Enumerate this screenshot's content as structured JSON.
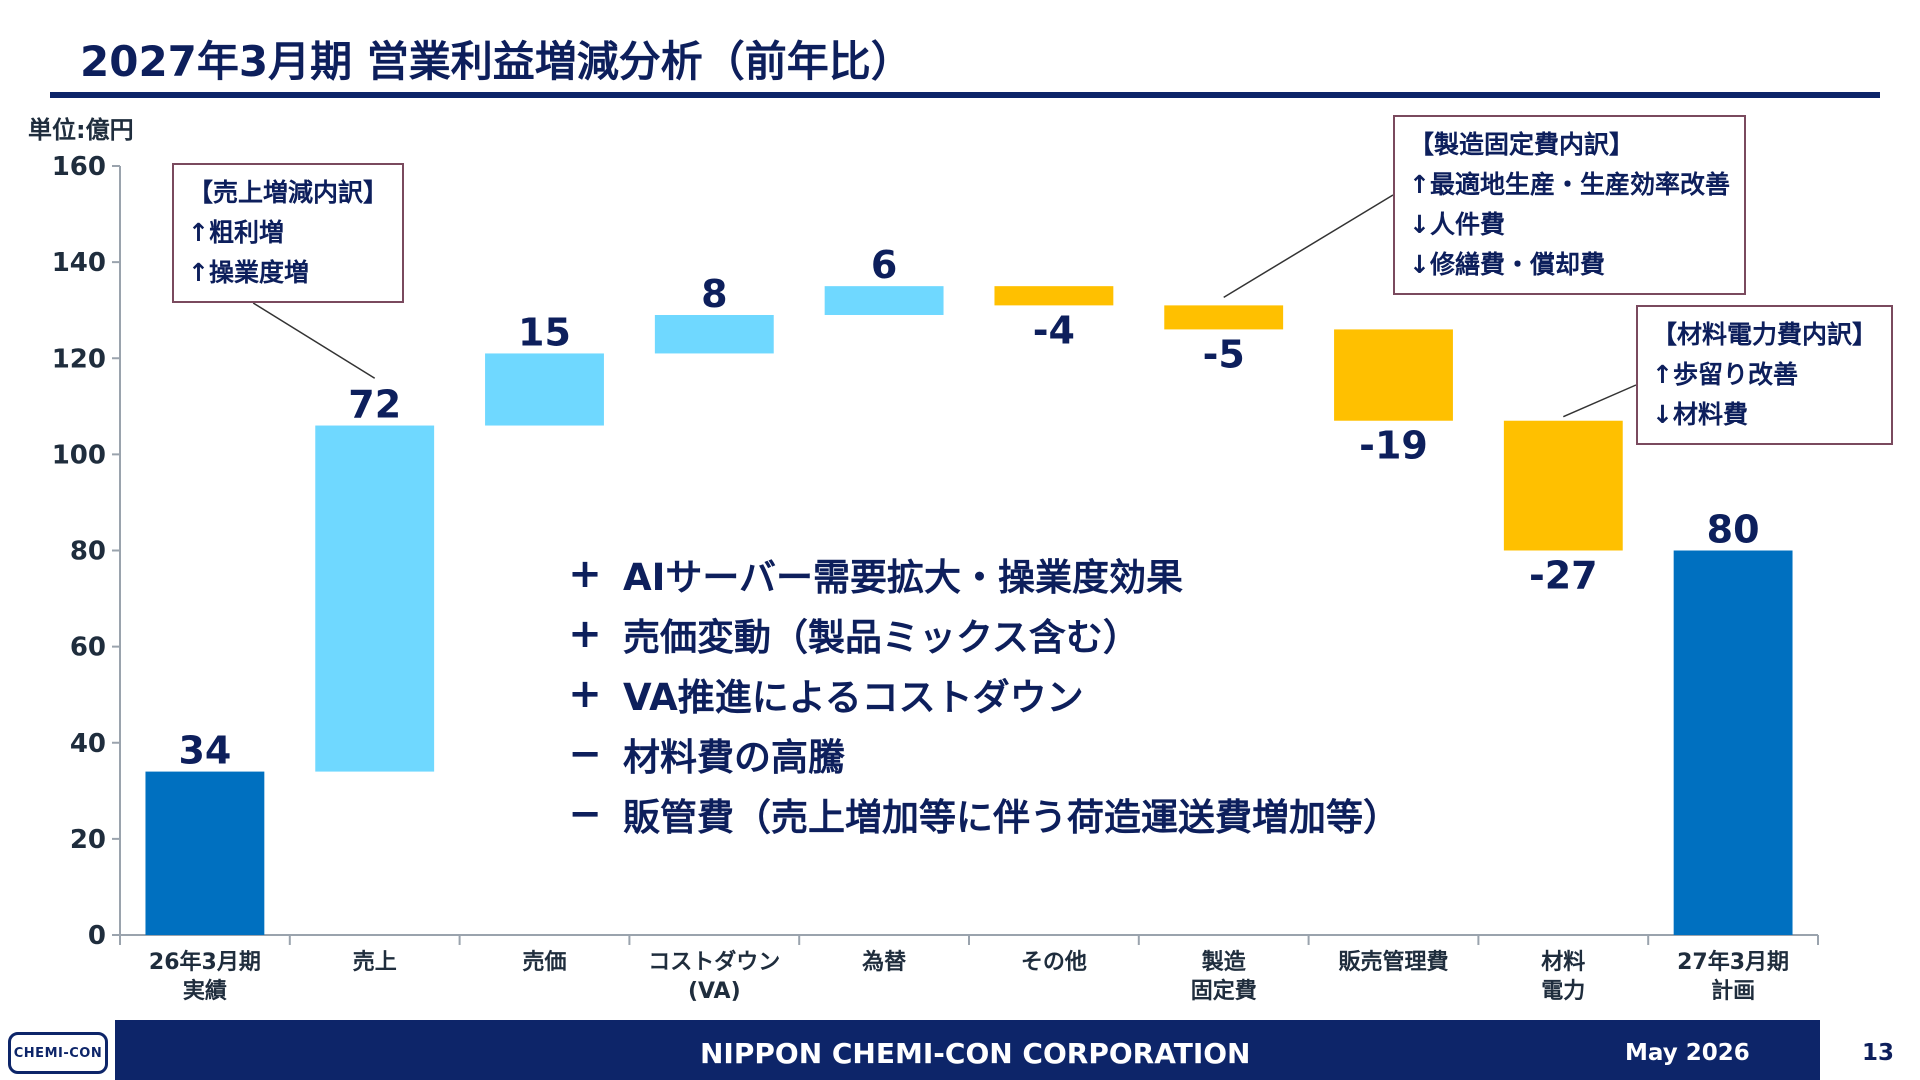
{
  "title": "2027年3月期 営業利益増減分析（前年比）",
  "unit_label": "単位:億円",
  "chart_data": {
    "type": "waterfall",
    "ylim": [
      0,
      160
    ],
    "y_ticks": [
      "0",
      "20",
      "40",
      "60",
      "80",
      "100",
      "120",
      "140",
      "160"
    ],
    "categories": [
      {
        "label": [
          "26年3月期",
          "実績"
        ],
        "kind": "total",
        "start": 0,
        "end": 34,
        "value_label": "34"
      },
      {
        "label": [
          "売上"
        ],
        "kind": "increase",
        "start": 34,
        "end": 106,
        "value_label": "72"
      },
      {
        "label": [
          "売価"
        ],
        "kind": "increase",
        "start": 106,
        "end": 121,
        "value_label": "15"
      },
      {
        "label": [
          "コストダウン",
          "(VA)"
        ],
        "kind": "increase",
        "start": 121,
        "end": 129,
        "value_label": "8"
      },
      {
        "label": [
          "為替"
        ],
        "kind": "increase",
        "start": 129,
        "end": 135,
        "value_label": "6"
      },
      {
        "label": [
          "その他"
        ],
        "kind": "decrease",
        "start": 135,
        "end": 131,
        "value_label": "-4"
      },
      {
        "label": [
          "製造",
          "固定費"
        ],
        "kind": "decrease",
        "start": 131,
        "end": 126,
        "value_label": "-5"
      },
      {
        "label": [
          "販売管理費"
        ],
        "kind": "decrease",
        "start": 126,
        "end": 107,
        "value_label": "-19"
      },
      {
        "label": [
          "材料",
          "電力"
        ],
        "kind": "decrease",
        "start": 107,
        "end": 80,
        "value_label": "-27"
      },
      {
        "label": [
          "27年3月期",
          "計画"
        ],
        "kind": "total",
        "start": 0,
        "end": 80,
        "value_label": "80"
      }
    ],
    "colors": {
      "total": "#0070c0",
      "increase": "#6fd8ff",
      "decrease": "#ffc000"
    }
  },
  "callouts": {
    "sales": {
      "lines": [
        "【売上増減内訳】",
        "↑粗利増",
        "↑操業度増"
      ]
    },
    "fixed_cost": {
      "lines": [
        "【製造固定費内訳】",
        "↑最適地生産・生産効率改善",
        "↓人件費",
        "↓修繕費・償却費"
      ]
    },
    "material": {
      "lines": [
        "【材料電力費内訳】",
        "↑歩留り改善",
        "↓材料費"
      ]
    }
  },
  "bullets": [
    {
      "sign": "+",
      "text": "AIサーバー需要拡大・操業度効果"
    },
    {
      "sign": "+",
      "text": "売価変動（製品ミックス含む）"
    },
    {
      "sign": "+",
      "text": "VA推進によるコストダウン"
    },
    {
      "sign": "−",
      "text": "材料費の高騰"
    },
    {
      "sign": "−",
      "text": "販管費（売上増加等に伴う荷造運送費増加等）"
    }
  ],
  "footer": {
    "company": "NIPPON CHEMI-CON CORPORATION",
    "date": "May 2026",
    "page": "13",
    "logo_text": "CHEMI-CON"
  }
}
